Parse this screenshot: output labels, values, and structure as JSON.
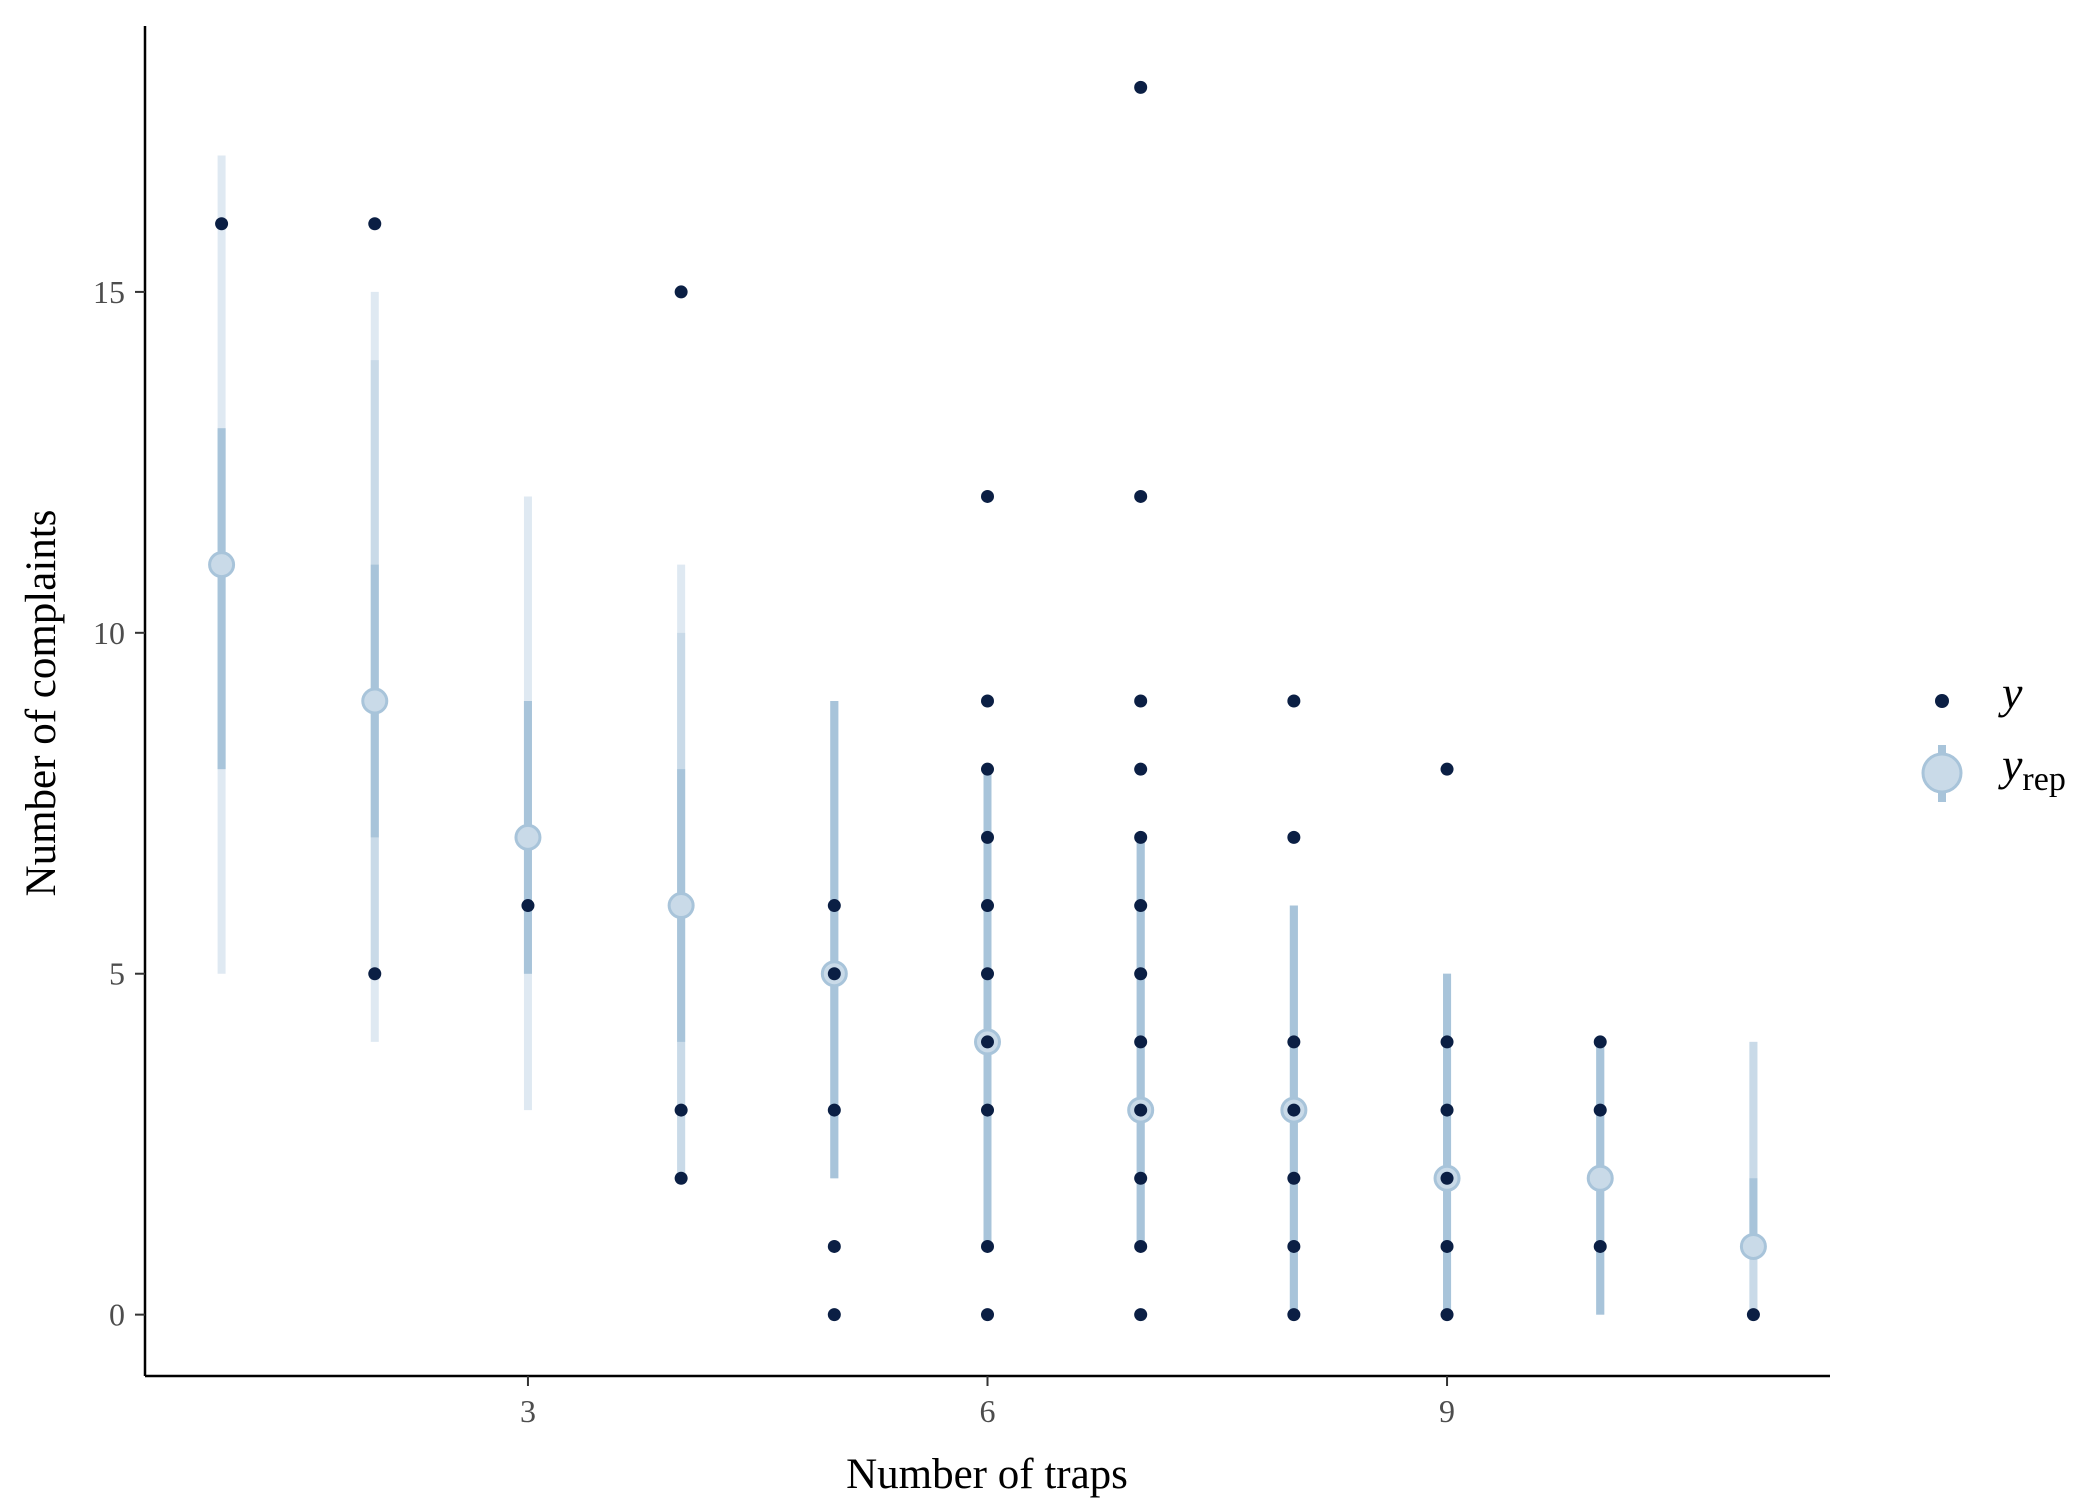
{
  "chart_data": {
    "type": "scatter",
    "title": "",
    "xlabel": "Number of traps",
    "ylabel": "Number of complaints",
    "xlim": [
      0.5,
      11.5
    ],
    "ylim": [
      -0.9,
      18.9
    ],
    "x_ticks": [
      3,
      6,
      9
    ],
    "y_ticks": [
      0,
      5,
      10,
      15
    ],
    "grid": false,
    "legend_position": "right",
    "colors": {
      "y_point": "#0b1f44",
      "yrep_fill": "#c9dae8",
      "yrep_stroke": "#a8c4da",
      "interval_outer": "#dfe9f2",
      "interval_mid": "#c9dae8",
      "interval_inner": "#a8c4da"
    },
    "legend": [
      {
        "label": "y",
        "sub": ""
      },
      {
        "label": "y",
        "sub": "rep"
      }
    ],
    "series": [
      {
        "name": "y",
        "points": [
          [
            1,
            16
          ],
          [
            2,
            16
          ],
          [
            2,
            5
          ],
          [
            3,
            6
          ],
          [
            4,
            15
          ],
          [
            4,
            3
          ],
          [
            4,
            2
          ],
          [
            5,
            6
          ],
          [
            5,
            5
          ],
          [
            5,
            3
          ],
          [
            5,
            1
          ],
          [
            5,
            0
          ],
          [
            6,
            12
          ],
          [
            6,
            9
          ],
          [
            6,
            8
          ],
          [
            6,
            7
          ],
          [
            6,
            6
          ],
          [
            6,
            5
          ],
          [
            6,
            4
          ],
          [
            6,
            3
          ],
          [
            6,
            1
          ],
          [
            6,
            0
          ],
          [
            7,
            18
          ],
          [
            7,
            12
          ],
          [
            7,
            9
          ],
          [
            7,
            8
          ],
          [
            7,
            7
          ],
          [
            7,
            6
          ],
          [
            7,
            5
          ],
          [
            7,
            4
          ],
          [
            7,
            3
          ],
          [
            7,
            2
          ],
          [
            7,
            1
          ],
          [
            7,
            0
          ],
          [
            8,
            9
          ],
          [
            8,
            7
          ],
          [
            8,
            4
          ],
          [
            8,
            3
          ],
          [
            8,
            2
          ],
          [
            8,
            1
          ],
          [
            8,
            0
          ],
          [
            9,
            8
          ],
          [
            9,
            4
          ],
          [
            9,
            3
          ],
          [
            9,
            2
          ],
          [
            9,
            1
          ],
          [
            9,
            0
          ],
          [
            10,
            4
          ],
          [
            10,
            3
          ],
          [
            10,
            1
          ],
          [
            11,
            0
          ]
        ]
      },
      {
        "name": "yrep",
        "intervals": [
          {
            "x": 1,
            "median": 11,
            "inner": [
              8,
              13
            ],
            "mid": [
              8,
              13
            ],
            "outer": [
              5,
              17
            ]
          },
          {
            "x": 2,
            "median": 9,
            "inner": [
              7,
              11
            ],
            "mid": [
              5,
              14
            ],
            "outer": [
              4,
              15
            ]
          },
          {
            "x": 3,
            "median": 7,
            "inner": [
              5,
              9
            ],
            "mid": [
              5,
              9
            ],
            "outer": [
              3,
              12
            ]
          },
          {
            "x": 4,
            "median": 6,
            "inner": [
              4,
              8
            ],
            "mid": [
              2,
              10
            ],
            "outer": [
              2,
              11
            ]
          },
          {
            "x": 5,
            "median": 5,
            "inner": [
              2,
              9
            ],
            "mid": [
              2,
              9
            ],
            "outer": [
              2,
              9
            ]
          },
          {
            "x": 6,
            "median": 4,
            "inner": [
              1,
              8
            ],
            "mid": [
              1,
              8
            ],
            "outer": [
              1,
              8
            ]
          },
          {
            "x": 7,
            "median": 3,
            "inner": [
              1,
              7
            ],
            "mid": [
              1,
              7
            ],
            "outer": [
              1,
              7
            ]
          },
          {
            "x": 8,
            "median": 3,
            "inner": [
              0,
              6
            ],
            "mid": [
              0,
              6
            ],
            "outer": [
              0,
              6
            ]
          },
          {
            "x": 9,
            "median": 2,
            "inner": [
              0,
              5
            ],
            "mid": [
              0,
              5
            ],
            "outer": [
              0,
              5
            ]
          },
          {
            "x": 10,
            "median": 2,
            "inner": [
              0,
              4
            ],
            "mid": [
              0,
              4
            ],
            "outer": [
              0,
              4
            ]
          },
          {
            "x": 11,
            "median": 1,
            "inner": [
              1,
              2
            ],
            "mid": [
              0,
              4
            ],
            "outer": [
              0,
              4
            ]
          }
        ]
      }
    ]
  }
}
